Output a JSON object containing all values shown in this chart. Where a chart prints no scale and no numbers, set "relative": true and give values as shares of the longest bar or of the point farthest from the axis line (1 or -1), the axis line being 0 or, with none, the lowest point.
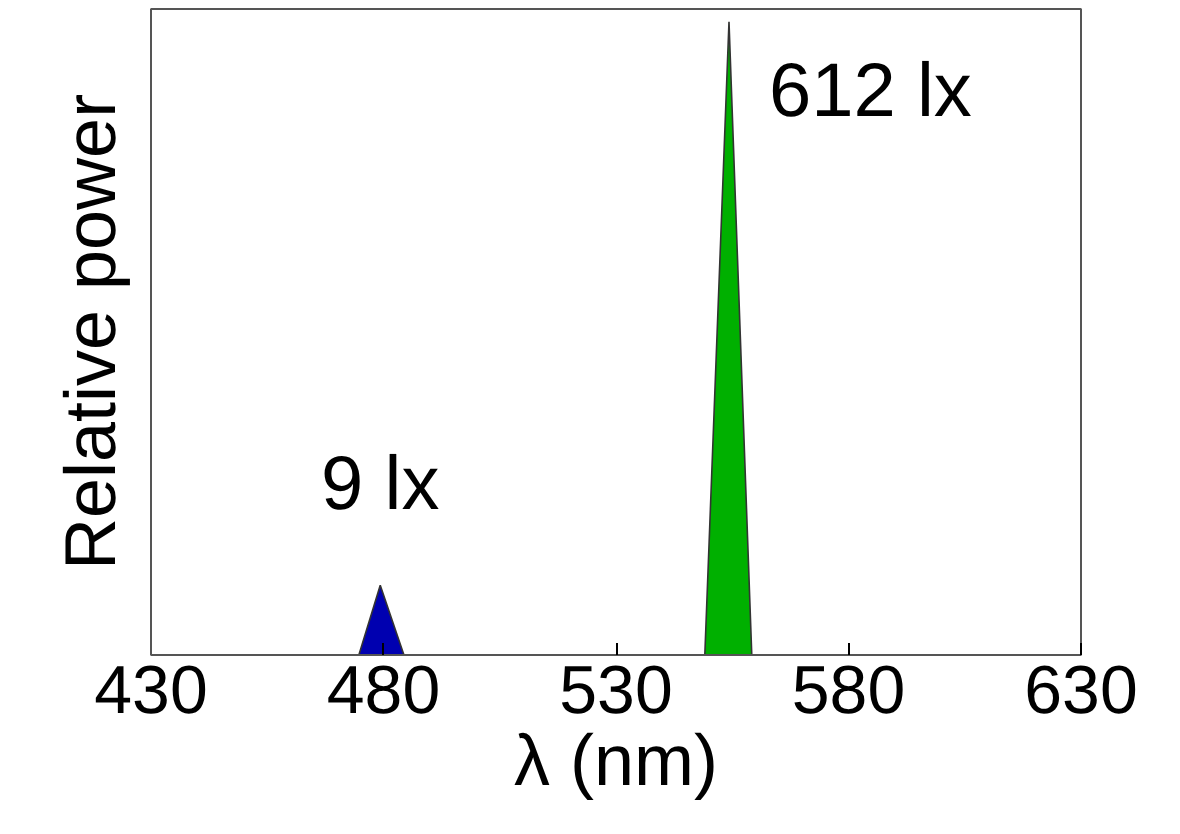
{
  "chart_data": {
    "type": "area",
    "relative": true,
    "xlabel": "λ (nm)",
    "ylabel": "Relative power",
    "xlim": [
      430,
      630
    ],
    "xticks": [
      430,
      480,
      530,
      580,
      630
    ],
    "grid": false,
    "series": [
      {
        "color": "#0000b0",
        "x": [
          474.7,
          479.3,
          484.4
        ],
        "values": [
          0,
          0.11,
          0
        ]
      },
      {
        "color": "#00b000",
        "x": [
          549.1,
          554.3,
          559.2
        ],
        "values": [
          0,
          1,
          0
        ]
      }
    ],
    "annotations": [
      "9 lx",
      "612 lx"
    ]
  }
}
